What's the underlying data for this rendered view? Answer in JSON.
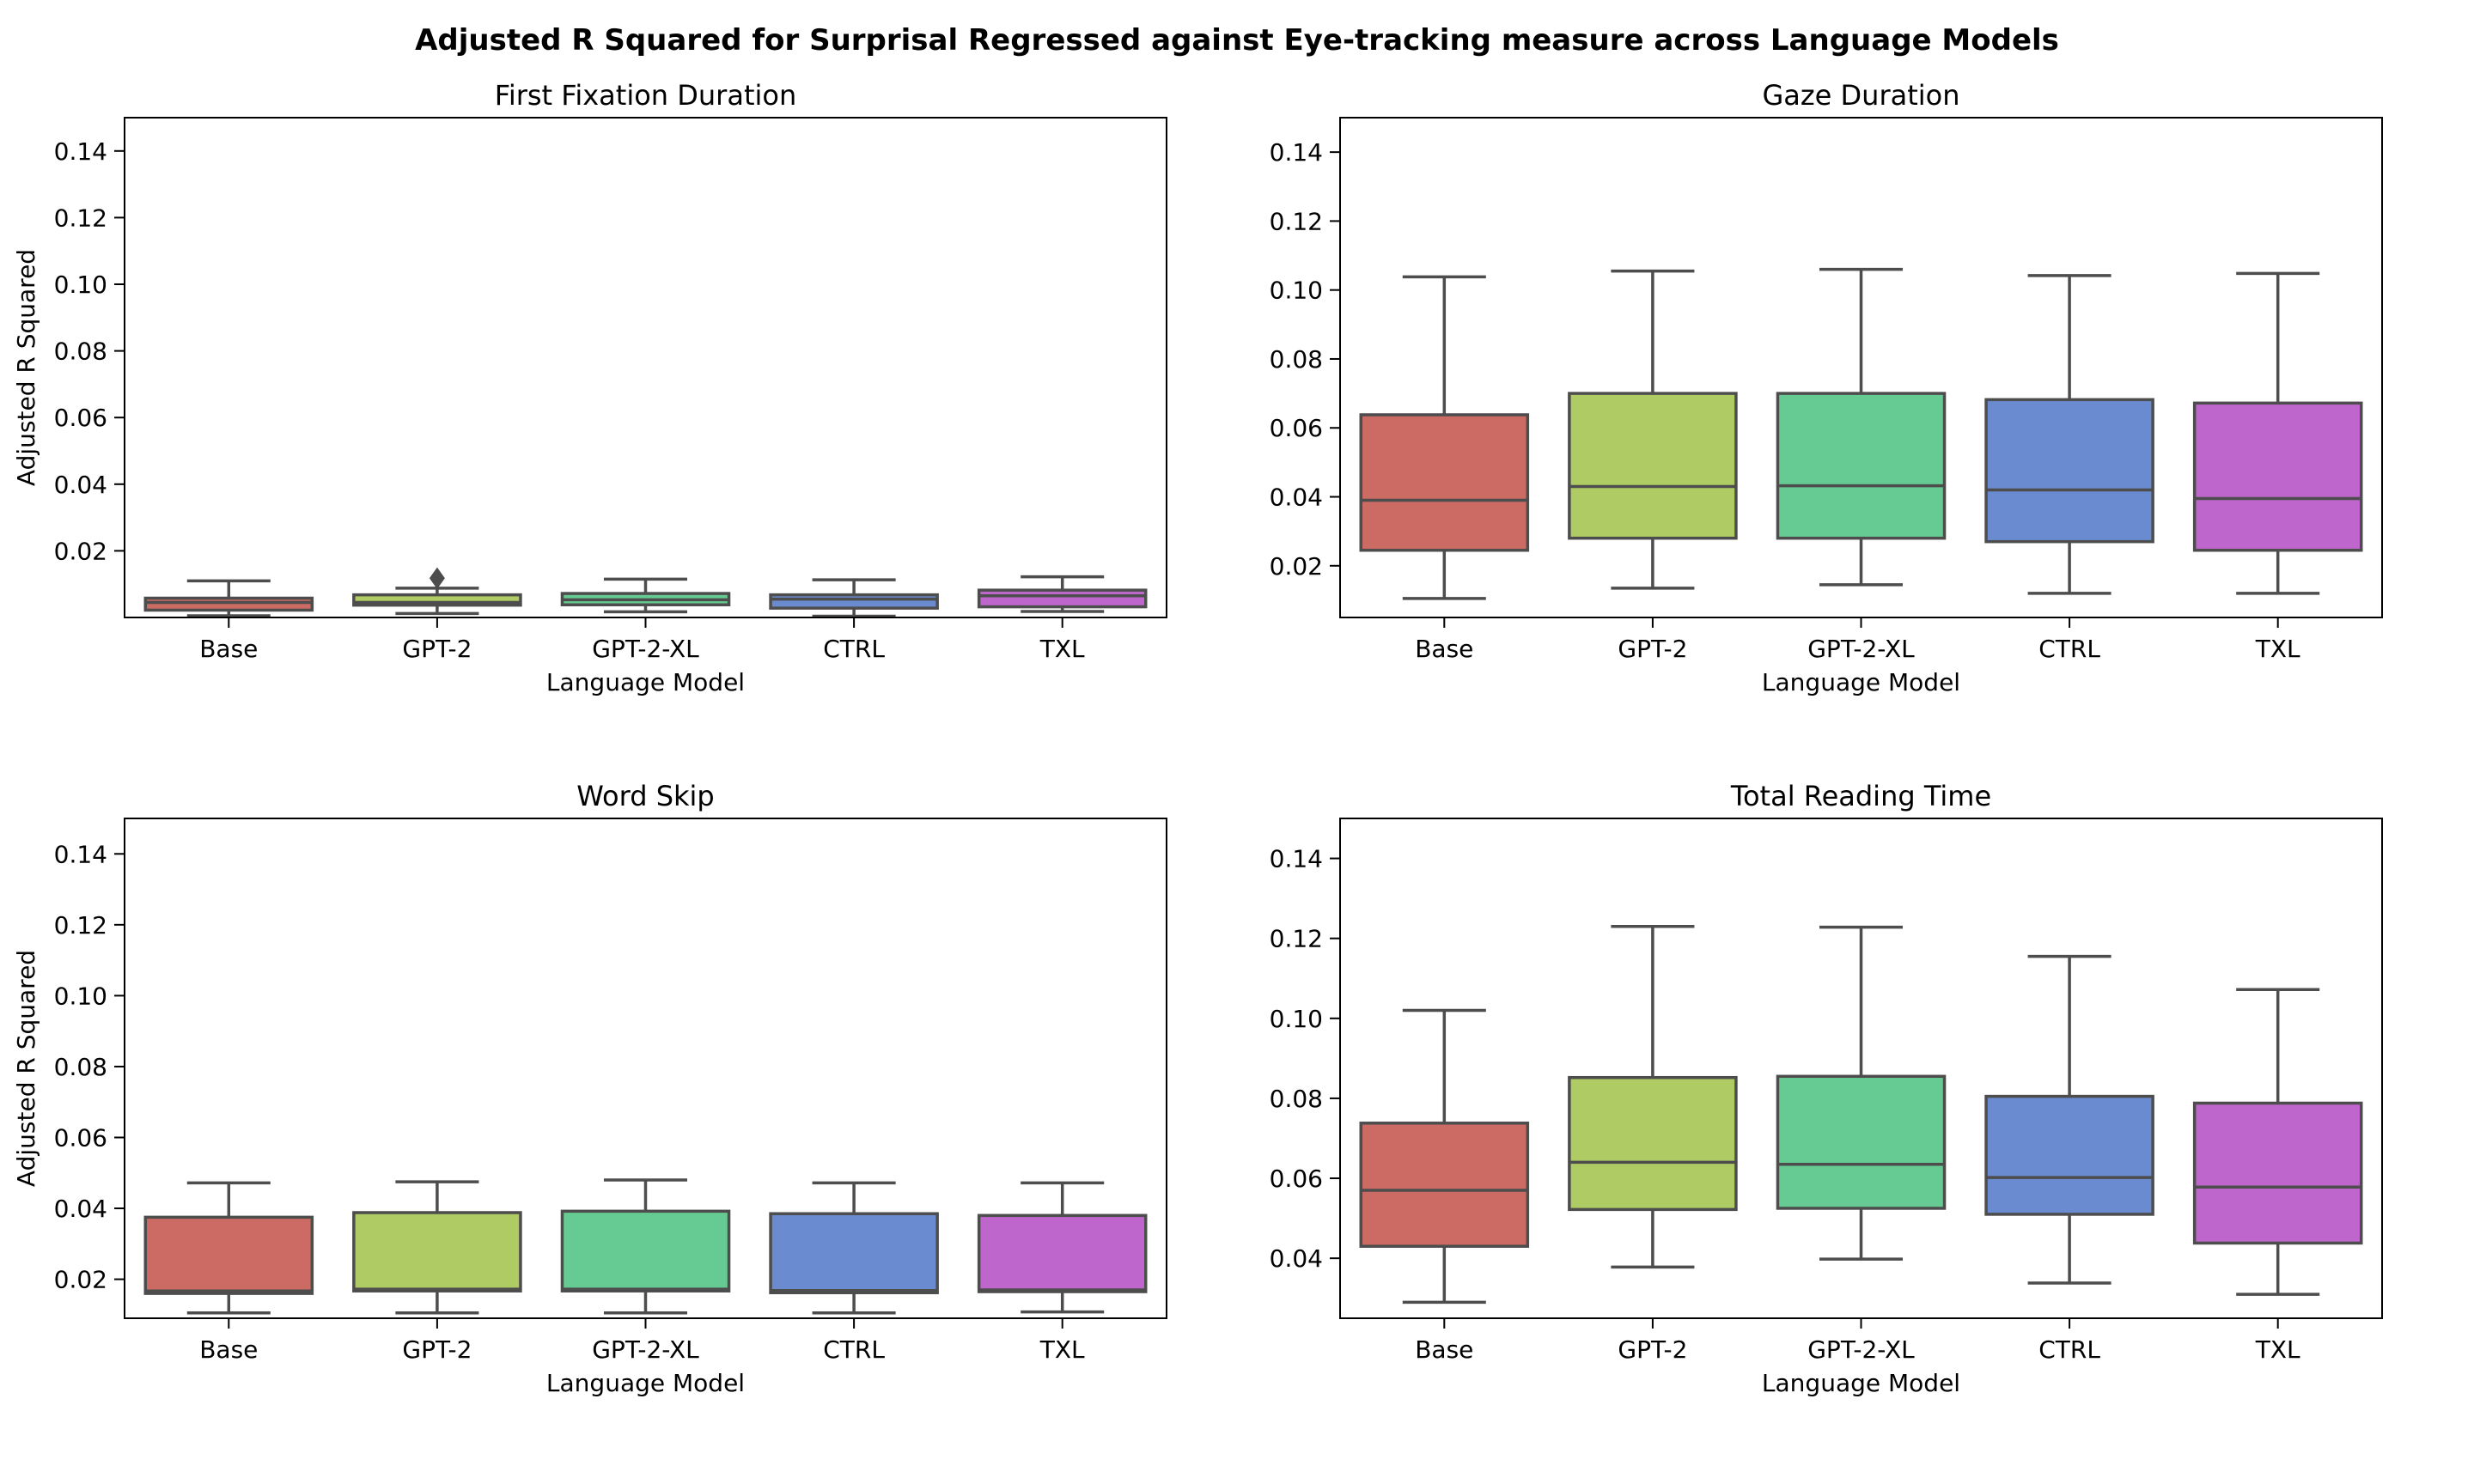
{
  "figure": {
    "title": "Adjusted R Squared for Surprisal Regressed against Eye-tracking measure across Language Models"
  },
  "colors": {
    "Base": "#cc6b63",
    "GPT-2": "#afcb63",
    "GPT-2-XL": "#66cb93",
    "CTRL": "#6a8bcf",
    "TXL": "#be66cb",
    "box_edge": "#4d4d4d"
  },
  "chart_data": [
    {
      "type": "box",
      "title": "First Fixation Duration",
      "xlabel": "Language Model",
      "ylabel": "Adjusted R Squared",
      "ylim": [
        0.0,
        0.15
      ],
      "yticks": [
        0.02,
        0.04,
        0.06,
        0.08,
        0.1,
        0.12,
        0.14
      ],
      "ytick_labels": [
        "0.02",
        "0.04",
        "0.06",
        "0.08",
        "0.10",
        "0.12",
        "0.14"
      ],
      "categories": [
        "Base",
        "GPT-2",
        "GPT-2-XL",
        "CTRL",
        "TXL"
      ],
      "boxes": [
        {
          "whislo": 0.0005,
          "q1": 0.0022,
          "med": 0.0045,
          "q3": 0.0058,
          "whishi": 0.011,
          "fliers": []
        },
        {
          "whislo": 0.0012,
          "q1": 0.0037,
          "med": 0.0045,
          "q3": 0.0068,
          "whishi": 0.0088,
          "fliers": [
            0.0118
          ]
        },
        {
          "whislo": 0.0017,
          "q1": 0.0038,
          "med": 0.0053,
          "q3": 0.0072,
          "whishi": 0.0115,
          "fliers": []
        },
        {
          "whislo": 0.0004,
          "q1": 0.0028,
          "med": 0.0055,
          "q3": 0.0068,
          "whishi": 0.0113,
          "fliers": []
        },
        {
          "whislo": 0.0018,
          "q1": 0.0032,
          "med": 0.0065,
          "q3": 0.0082,
          "whishi": 0.0122,
          "fliers": []
        }
      ]
    },
    {
      "type": "box",
      "title": "Gaze Duration",
      "xlabel": "Language Model",
      "ylabel": "",
      "ylim": [
        0.005,
        0.15
      ],
      "yticks": [
        0.02,
        0.04,
        0.06,
        0.08,
        0.1,
        0.12,
        0.14
      ],
      "ytick_labels": [
        "0.02",
        "0.04",
        "0.06",
        "0.08",
        "0.10",
        "0.12",
        "0.14"
      ],
      "categories": [
        "Base",
        "GPT-2",
        "GPT-2-XL",
        "CTRL",
        "TXL"
      ],
      "boxes": [
        {
          "whislo": 0.0105,
          "q1": 0.0245,
          "med": 0.039,
          "q3": 0.0638,
          "whishi": 0.1038,
          "fliers": []
        },
        {
          "whislo": 0.0135,
          "q1": 0.028,
          "med": 0.043,
          "q3": 0.07,
          "whishi": 0.1055,
          "fliers": []
        },
        {
          "whislo": 0.0145,
          "q1": 0.028,
          "med": 0.0432,
          "q3": 0.07,
          "whishi": 0.106,
          "fliers": []
        },
        {
          "whislo": 0.012,
          "q1": 0.027,
          "med": 0.042,
          "q3": 0.0682,
          "whishi": 0.1042,
          "fliers": []
        },
        {
          "whislo": 0.012,
          "q1": 0.0245,
          "med": 0.0395,
          "q3": 0.0672,
          "whishi": 0.1048,
          "fliers": []
        }
      ]
    },
    {
      "type": "box",
      "title": "Word Skip",
      "xlabel": "Language Model",
      "ylabel": "Adjusted R Squared",
      "ylim": [
        0.009,
        0.15
      ],
      "yticks": [
        0.02,
        0.04,
        0.06,
        0.08,
        0.1,
        0.12,
        0.14
      ],
      "ytick_labels": [
        "0.02",
        "0.04",
        "0.06",
        "0.08",
        "0.10",
        "0.12",
        "0.14"
      ],
      "categories": [
        "Base",
        "GPT-2",
        "GPT-2-XL",
        "CTRL",
        "TXL"
      ],
      "boxes": [
        {
          "whislo": 0.0105,
          "q1": 0.016,
          "med": 0.0167,
          "q3": 0.0375,
          "whishi": 0.0472,
          "fliers": []
        },
        {
          "whislo": 0.0105,
          "q1": 0.0167,
          "med": 0.0172,
          "q3": 0.0388,
          "whishi": 0.0475,
          "fliers": []
        },
        {
          "whislo": 0.0105,
          "q1": 0.0167,
          "med": 0.0172,
          "q3": 0.0392,
          "whishi": 0.048,
          "fliers": []
        },
        {
          "whislo": 0.0105,
          "q1": 0.0162,
          "med": 0.0168,
          "q3": 0.0385,
          "whishi": 0.0472,
          "fliers": []
        },
        {
          "whislo": 0.0108,
          "q1": 0.0165,
          "med": 0.017,
          "q3": 0.038,
          "whishi": 0.0472,
          "fliers": []
        }
      ]
    },
    {
      "type": "box",
      "title": "Total Reading Time",
      "xlabel": "Language Model",
      "ylabel": "",
      "ylim": [
        0.025,
        0.15
      ],
      "yticks": [
        0.04,
        0.06,
        0.08,
        0.1,
        0.12,
        0.14
      ],
      "ytick_labels": [
        "0.04",
        "0.06",
        "0.08",
        "0.10",
        "0.12",
        "0.14"
      ],
      "categories": [
        "Base",
        "GPT-2",
        "GPT-2-XL",
        "CTRL",
        "TXL"
      ],
      "boxes": [
        {
          "whislo": 0.029,
          "q1": 0.043,
          "med": 0.057,
          "q3": 0.0738,
          "whishi": 0.102,
          "fliers": []
        },
        {
          "whislo": 0.0378,
          "q1": 0.0522,
          "med": 0.064,
          "q3": 0.0852,
          "whishi": 0.123,
          "fliers": []
        },
        {
          "whislo": 0.0398,
          "q1": 0.0525,
          "med": 0.0635,
          "q3": 0.0855,
          "whishi": 0.1228,
          "fliers": []
        },
        {
          "whislo": 0.0338,
          "q1": 0.051,
          "med": 0.0602,
          "q3": 0.0805,
          "whishi": 0.1155,
          "fliers": []
        },
        {
          "whislo": 0.031,
          "q1": 0.0438,
          "med": 0.0578,
          "q3": 0.0788,
          "whishi": 0.1072,
          "fliers": []
        }
      ]
    }
  ]
}
